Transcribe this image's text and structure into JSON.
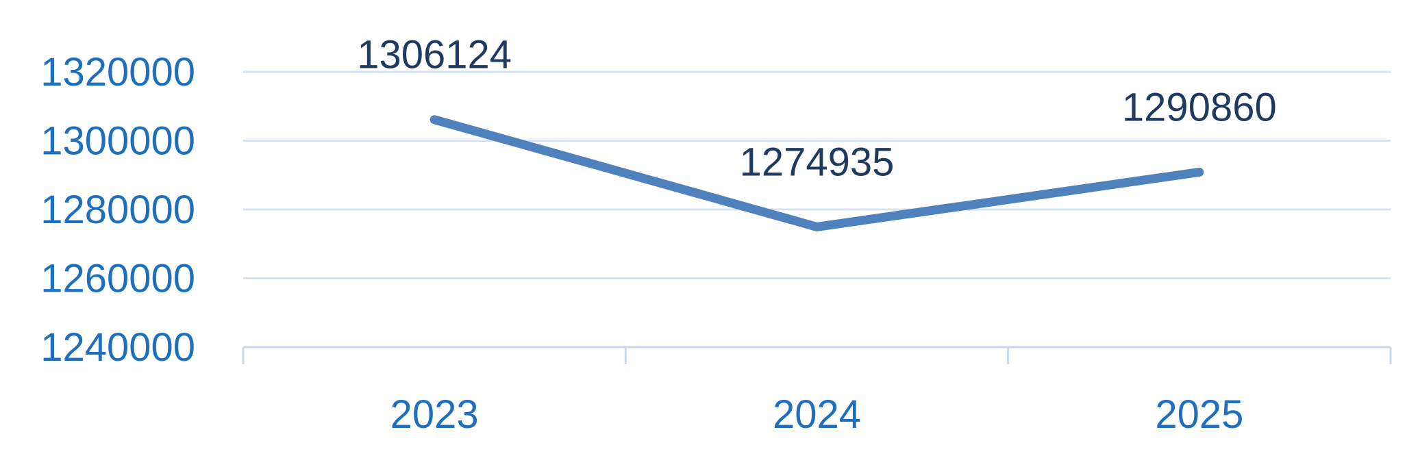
{
  "chart_data": {
    "type": "line",
    "title": "",
    "xlabel": "",
    "ylabel": "",
    "categories": [
      "2023",
      "2024",
      "2025"
    ],
    "series": [
      {
        "values": [
          1306124,
          1274935,
          1290860
        ]
      }
    ],
    "ylim": [
      1240000,
      1320000
    ],
    "yticks": [
      "1240000",
      "1260000",
      "1280000",
      "1300000",
      "1320000"
    ],
    "data_labels": [
      "1306124",
      "1274935",
      "1290860"
    ],
    "grid": true,
    "legend": "none"
  },
  "colors": {
    "line": "#4f81bd",
    "tick_text": "#1f6fbf",
    "data_label_text": "#1f3a5f",
    "grid": "#d6e3f2",
    "axis": "#c8d8ec"
  }
}
